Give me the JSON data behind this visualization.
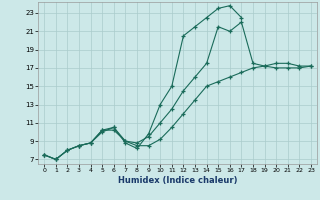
{
  "xlabel": "Humidex (Indice chaleur)",
  "bg_color": "#cce8e8",
  "grid_color": "#aacccc",
  "line_color": "#1a6b5a",
  "xlim_min": -0.5,
  "xlim_max": 23.5,
  "ylim_min": 6.5,
  "ylim_max": 24.2,
  "yticks": [
    7,
    9,
    11,
    13,
    15,
    17,
    19,
    21,
    23
  ],
  "xticks": [
    0,
    1,
    2,
    3,
    4,
    5,
    6,
    7,
    8,
    9,
    10,
    11,
    12,
    13,
    14,
    15,
    16,
    17,
    18,
    19,
    20,
    21,
    22,
    23
  ],
  "line1_x": [
    0,
    1,
    2,
    3,
    4,
    5,
    6,
    7,
    8,
    9,
    10,
    11,
    12,
    13,
    14,
    15,
    16,
    17
  ],
  "line1_y": [
    7.5,
    7.0,
    8.0,
    8.5,
    8.8,
    10.2,
    10.5,
    8.8,
    8.2,
    9.8,
    13.0,
    15.0,
    20.5,
    21.5,
    22.5,
    23.5,
    23.8,
    22.5
  ],
  "line2_x": [
    0,
    1,
    2,
    3,
    4,
    5,
    6,
    7,
    8,
    9,
    10,
    11,
    12,
    13,
    14,
    15,
    16,
    17,
    18,
    19,
    20,
    21,
    22,
    23
  ],
  "line2_y": [
    7.5,
    7.0,
    8.0,
    8.5,
    8.8,
    10.2,
    10.2,
    9.0,
    8.8,
    9.5,
    11.0,
    12.5,
    14.5,
    16.0,
    17.5,
    21.5,
    21.0,
    22.0,
    17.5,
    17.2,
    17.0,
    17.0,
    17.0,
    17.2
  ],
  "line3_x": [
    0,
    1,
    2,
    3,
    4,
    5,
    6,
    7,
    8,
    9,
    10,
    11,
    12,
    13,
    14,
    15,
    16,
    17,
    18,
    19,
    20,
    21,
    22,
    23
  ],
  "line3_y": [
    7.5,
    7.0,
    8.0,
    8.5,
    8.8,
    10.0,
    10.5,
    9.0,
    8.5,
    8.5,
    9.2,
    10.5,
    12.0,
    13.5,
    15.0,
    15.5,
    16.0,
    16.5,
    17.0,
    17.2,
    17.5,
    17.5,
    17.2,
    17.2
  ]
}
